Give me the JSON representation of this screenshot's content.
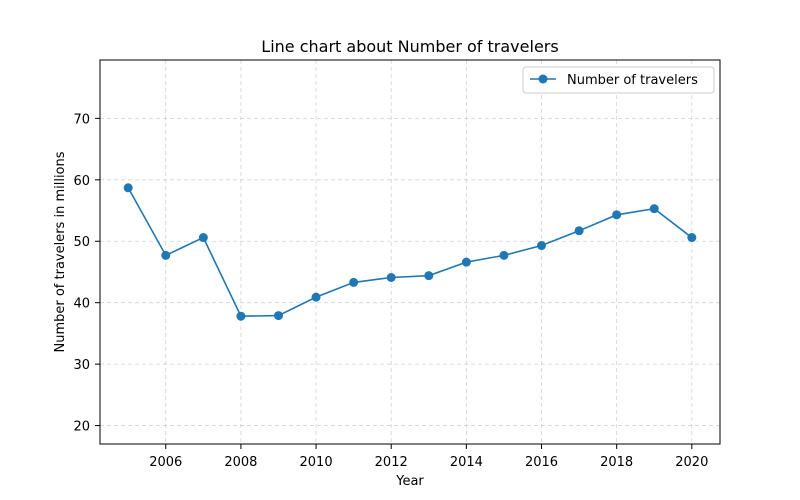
{
  "chart_data": {
    "type": "line",
    "title": "Line chart about Number of travelers",
    "xlabel": "Year",
    "ylabel": "Number of travelers in millions",
    "x": [
      2005,
      2006,
      2007,
      2008,
      2009,
      2010,
      2011,
      2012,
      2013,
      2014,
      2015,
      2016,
      2017,
      2018,
      2019,
      2020
    ],
    "series": [
      {
        "name": "Number of travelers",
        "values": [
          58.7,
          47.7,
          50.6,
          37.8,
          37.9,
          40.9,
          43.3,
          44.1,
          44.4,
          46.6,
          47.7,
          49.3,
          51.7,
          54.3,
          55.3,
          50.6
        ],
        "color": "#1f77b4"
      }
    ],
    "xlim": [
      2004.25,
      2020.75
    ],
    "ylim": [
      17,
      79.5
    ],
    "xticks": [
      "2006",
      "2008",
      "2010",
      "2012",
      "2014",
      "2016",
      "2018",
      "2020"
    ],
    "yticks": [
      "20",
      "30",
      "40",
      "50",
      "60",
      "70"
    ],
    "grid": true,
    "legend_position": "top-right"
  }
}
